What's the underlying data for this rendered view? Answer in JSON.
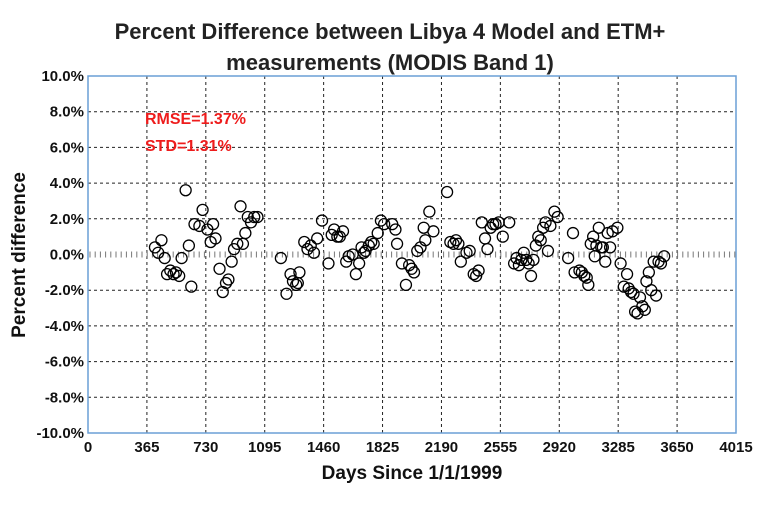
{
  "chart_data": {
    "type": "scatter",
    "title_line1": "Percent Difference between Libya 4 Model and ETM+",
    "title_line2": "measurements (MODIS Band 1)",
    "xlabel": "Days Since 1/1/1999",
    "ylabel": "Percent difference",
    "xlim": [
      0,
      4015
    ],
    "ylim": [
      -10,
      10
    ],
    "x_ticks": [
      "0",
      "365",
      "730",
      "1095",
      "1460",
      "1825",
      "2190",
      "2555",
      "2920",
      "3285",
      "3650",
      "4015"
    ],
    "y_ticks": [
      "10.0%",
      "8.0%",
      "6.0%",
      "4.0%",
      "2.0%",
      "0.0%",
      "-2.0%",
      "-4.0%",
      "-6.0%",
      "-8.0%",
      "-10.0%"
    ],
    "grid": true,
    "marker": "open-circle",
    "annotations": [
      "RMSE=1.37%",
      "STD=1.31%"
    ],
    "annotation_color": "#ee1c1c",
    "points": [
      [
        415,
        0.4
      ],
      [
        435,
        0.1
      ],
      [
        455,
        0.8
      ],
      [
        475,
        -0.2
      ],
      [
        490,
        -1.1
      ],
      [
        510,
        -0.9
      ],
      [
        530,
        -1.1
      ],
      [
        545,
        -1.0
      ],
      [
        565,
        -1.2
      ],
      [
        580,
        -0.2
      ],
      [
        605,
        3.6
      ],
      [
        625,
        0.5
      ],
      [
        640,
        -1.8
      ],
      [
        660,
        1.7
      ],
      [
        690,
        1.6
      ],
      [
        710,
        2.5
      ],
      [
        740,
        1.4
      ],
      [
        760,
        0.7
      ],
      [
        775,
        1.7
      ],
      [
        790,
        0.9
      ],
      [
        815,
        -0.8
      ],
      [
        835,
        -2.1
      ],
      [
        855,
        -1.6
      ],
      [
        870,
        -1.4
      ],
      [
        890,
        -0.4
      ],
      [
        905,
        0.3
      ],
      [
        925,
        0.6
      ],
      [
        945,
        2.7
      ],
      [
        960,
        0.6
      ],
      [
        975,
        1.2
      ],
      [
        990,
        2.1
      ],
      [
        1010,
        1.8
      ],
      [
        1030,
        2.1
      ],
      [
        1050,
        2.1
      ],
      [
        1195,
        -0.2
      ],
      [
        1230,
        -2.2
      ],
      [
        1255,
        -1.1
      ],
      [
        1270,
        -1.5
      ],
      [
        1290,
        -1.7
      ],
      [
        1300,
        -1.6
      ],
      [
        1310,
        -1.0
      ],
      [
        1340,
        0.7
      ],
      [
        1360,
        0.3
      ],
      [
        1380,
        0.5
      ],
      [
        1400,
        0.1
      ],
      [
        1420,
        0.9
      ],
      [
        1450,
        1.9
      ],
      [
        1490,
        -0.5
      ],
      [
        1510,
        1.1
      ],
      [
        1525,
        1.4
      ],
      [
        1545,
        1.0
      ],
      [
        1560,
        1.0
      ],
      [
        1580,
        1.3
      ],
      [
        1600,
        -0.4
      ],
      [
        1615,
        -0.1
      ],
      [
        1640,
        0.0
      ],
      [
        1660,
        -1.1
      ],
      [
        1680,
        -0.5
      ],
      [
        1695,
        0.4
      ],
      [
        1710,
        0.1
      ],
      [
        1720,
        0.2
      ],
      [
        1740,
        0.5
      ],
      [
        1755,
        0.7
      ],
      [
        1770,
        0.6
      ],
      [
        1795,
        1.2
      ],
      [
        1815,
        1.9
      ],
      [
        1835,
        1.7
      ],
      [
        1885,
        1.7
      ],
      [
        1905,
        1.4
      ],
      [
        1915,
        0.6
      ],
      [
        1945,
        -0.5
      ],
      [
        1970,
        -1.7
      ],
      [
        1990,
        -0.6
      ],
      [
        2005,
        -0.8
      ],
      [
        2020,
        -1.0
      ],
      [
        2040,
        0.2
      ],
      [
        2060,
        0.4
      ],
      [
        2080,
        1.5
      ],
      [
        2090,
        0.8
      ],
      [
        2115,
        2.4
      ],
      [
        2140,
        1.3
      ],
      [
        2225,
        3.5
      ],
      [
        2245,
        0.7
      ],
      [
        2265,
        0.6
      ],
      [
        2280,
        0.8
      ],
      [
        2295,
        0.6
      ],
      [
        2310,
        -0.4
      ],
      [
        2345,
        0.1
      ],
      [
        2365,
        0.2
      ],
      [
        2390,
        -1.1
      ],
      [
        2405,
        -1.2
      ],
      [
        2420,
        -0.9
      ],
      [
        2440,
        1.8
      ],
      [
        2460,
        0.9
      ],
      [
        2475,
        0.3
      ],
      [
        2495,
        1.5
      ],
      [
        2510,
        1.7
      ],
      [
        2525,
        1.7
      ],
      [
        2545,
        1.8
      ],
      [
        2570,
        1.0
      ],
      [
        2610,
        1.8
      ],
      [
        2640,
        -0.5
      ],
      [
        2655,
        -0.2
      ],
      [
        2670,
        -0.6
      ],
      [
        2685,
        -0.3
      ],
      [
        2700,
        0.1
      ],
      [
        2715,
        -0.3
      ],
      [
        2730,
        -0.5
      ],
      [
        2745,
        -1.2
      ],
      [
        2760,
        -0.3
      ],
      [
        2775,
        0.5
      ],
      [
        2790,
        1.0
      ],
      [
        2805,
        0.8
      ],
      [
        2820,
        1.5
      ],
      [
        2835,
        1.8
      ],
      [
        2850,
        0.2
      ],
      [
        2865,
        1.6
      ],
      [
        2890,
        2.4
      ],
      [
        2910,
        2.1
      ],
      [
        2975,
        -0.2
      ],
      [
        3005,
        1.2
      ],
      [
        3015,
        -1.0
      ],
      [
        3045,
        -0.9
      ],
      [
        3060,
        -1.0
      ],
      [
        3075,
        -1.2
      ],
      [
        3090,
        -1.3
      ],
      [
        3100,
        -1.7
      ],
      [
        3115,
        0.6
      ],
      [
        3130,
        1.0
      ],
      [
        3140,
        -0.1
      ],
      [
        3150,
        0.5
      ],
      [
        3165,
        1.5
      ],
      [
        3180,
        0.4
      ],
      [
        3190,
        0.4
      ],
      [
        3205,
        -0.4
      ],
      [
        3220,
        1.2
      ],
      [
        3235,
        0.4
      ],
      [
        3250,
        1.3
      ],
      [
        3280,
        1.5
      ],
      [
        3300,
        -0.5
      ],
      [
        3320,
        -1.8
      ],
      [
        3340,
        -1.1
      ],
      [
        3350,
        -1.9
      ],
      [
        3365,
        -2.1
      ],
      [
        3380,
        -2.2
      ],
      [
        3390,
        -3.2
      ],
      [
        3405,
        -3.3
      ],
      [
        3420,
        -2.4
      ],
      [
        3435,
        -2.9
      ],
      [
        3450,
        -3.1
      ],
      [
        3460,
        -1.5
      ],
      [
        3475,
        -1.0
      ],
      [
        3490,
        -2.0
      ],
      [
        3505,
        -0.4
      ],
      [
        3520,
        -2.3
      ],
      [
        3535,
        -0.4
      ],
      [
        3550,
        -0.5
      ],
      [
        3570,
        -0.1
      ]
    ]
  }
}
